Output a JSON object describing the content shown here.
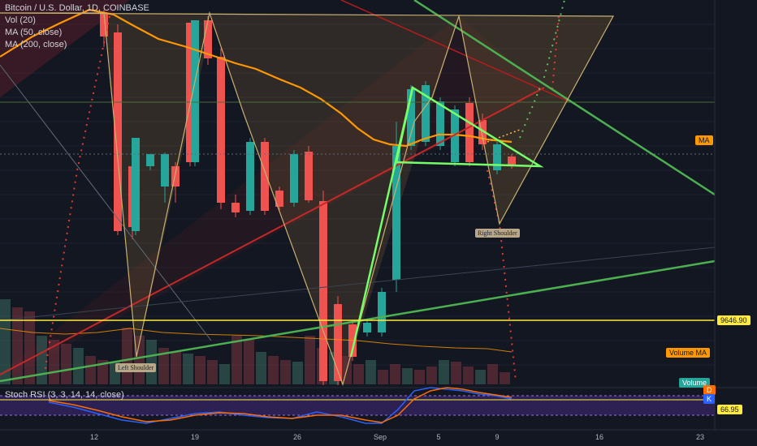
{
  "legend": {
    "title": "Bitcoin / U.S. Dollar, 1D, COINBASE",
    "vol": "Vol (20)",
    "ma50": "MA (50, close)",
    "ma200": "MA (200, close)"
  },
  "stoch_label": "Stoch RSI (3, 3, 14, 14, close)",
  "axis_tags": {
    "ma": "MA",
    "price": "9646.90",
    "volume_ma": "Volume MA",
    "volume": "Volume",
    "stoch_d": "D",
    "stoch_k": "K",
    "stoch_value": "66.95"
  },
  "pattern_labels": {
    "left_shoulder": "Left Shoulder",
    "right_shoulder": "Right Shoulder"
  },
  "colors": {
    "background": "#131722",
    "up": "#26a69a",
    "down": "#ef5350",
    "ma50": "#ff9800",
    "pattern": "#c8b070",
    "trendline": "#4caf50",
    "triangle": "#76ff69",
    "red_trend": "#b71c1c",
    "support": "#ffeb3b",
    "stoch_k": "#2962ff",
    "stoch_d": "#ff6d00"
  },
  "chart_data": {
    "type": "candlestick",
    "x_tick_labels": [
      "12",
      "19",
      "26",
      "Sep",
      "5",
      "9",
      "16",
      "23"
    ],
    "horizontal_levels": [
      9646.9
    ],
    "candles": [
      {
        "color": "down"
      },
      {
        "color": "down"
      },
      {
        "color": "down"
      },
      {
        "color": "up"
      },
      {
        "color": "up"
      },
      {
        "color": "up"
      },
      {
        "color": "down"
      },
      {
        "color": "down"
      },
      {
        "color": "up"
      },
      {
        "color": "down"
      },
      {
        "color": "down"
      },
      {
        "color": "down"
      },
      {
        "color": "up"
      },
      {
        "color": "down"
      },
      {
        "color": "down"
      },
      {
        "color": "up"
      },
      {
        "color": "down"
      },
      {
        "color": "down"
      },
      {
        "color": "down"
      },
      {
        "color": "down"
      },
      {
        "color": "up"
      },
      {
        "color": "up"
      },
      {
        "color": "up"
      },
      {
        "color": "up"
      },
      {
        "color": "up"
      },
      {
        "color": "up"
      },
      {
        "color": "up"
      },
      {
        "color": "down"
      },
      {
        "color": "down"
      },
      {
        "color": "up"
      },
      {
        "color": "down"
      },
      {
        "color": "down"
      },
      {
        "color": "down"
      },
      {
        "color": "up"
      },
      {
        "color": "down"
      },
      {
        "color": "up"
      }
    ]
  }
}
